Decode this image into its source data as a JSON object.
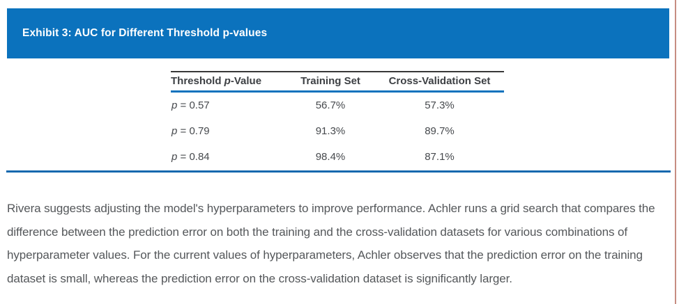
{
  "exhibit": {
    "title": "Exhibit 3: AUC for Different Threshold p-values"
  },
  "table": {
    "header": {
      "threshold_prefix": "Threshold ",
      "threshold_p": "p",
      "threshold_suffix": "-Value",
      "training": "Training Set",
      "cv": "Cross-Validation Set"
    },
    "rows": [
      {
        "p": "p",
        "eq": " = 0.57",
        "training": "56.7%",
        "cv": "57.3%"
      },
      {
        "p": "p",
        "eq": " = 0.79",
        "training": "91.3%",
        "cv": "89.7%"
      },
      {
        "p": "p",
        "eq": " = 0.84",
        "training": "98.4%",
        "cv": "87.1%"
      }
    ]
  },
  "paragraph": "Rivera suggests adjusting the model's hyperparameters to improve performance. Achler runs a grid search that compares the difference between the prediction error on both the training and the cross-validation datasets for various combinations of hyperparameter values. For the current values of hyperparameters, Achler observes that the prediction error on the training dataset is small, whereas the prediction error on the cross-validation dataset is significantly larger.",
  "colors": {
    "accent_blue": "#0b72bd",
    "divider_blue": "#1268ae",
    "side_border": "#c78d82"
  }
}
